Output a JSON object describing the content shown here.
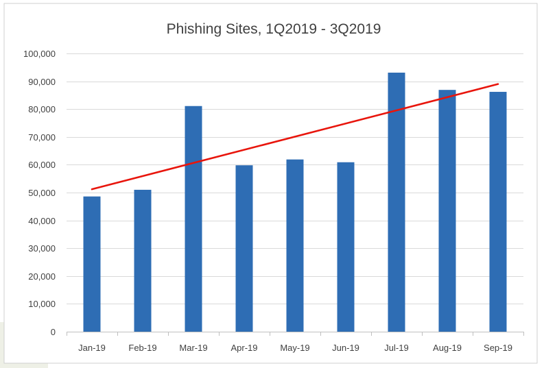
{
  "chart_data": {
    "type": "bar",
    "title": "Phishing Sites, 1Q2019 - 3Q2019",
    "xlabel": "",
    "ylabel": "",
    "categories": [
      "Jan-19",
      "Feb-19",
      "Mar-19",
      "Apr-19",
      "May-19",
      "Jun-19",
      "Jul-19",
      "Aug-19",
      "Sep-19"
    ],
    "series": [
      {
        "values": [
          48600,
          51000,
          81100,
          59800,
          61900,
          60900,
          93100,
          86900,
          86200
        ],
        "color": "#2e6db4"
      }
    ],
    "trendline": {
      "type": "linear",
      "start": 51200,
      "end": 89000,
      "color": "#e8150c"
    },
    "ylim": [
      0,
      100000
    ],
    "yticks": [
      0,
      10000,
      20000,
      30000,
      40000,
      50000,
      60000,
      70000,
      80000,
      90000,
      100000
    ],
    "ytick_labels": [
      "0",
      "10,000",
      "20,000",
      "30,000",
      "40,000",
      "50,000",
      "60,000",
      "70,000",
      "80,000",
      "90,000",
      "100,000"
    ],
    "grid": true,
    "legend": "none"
  }
}
